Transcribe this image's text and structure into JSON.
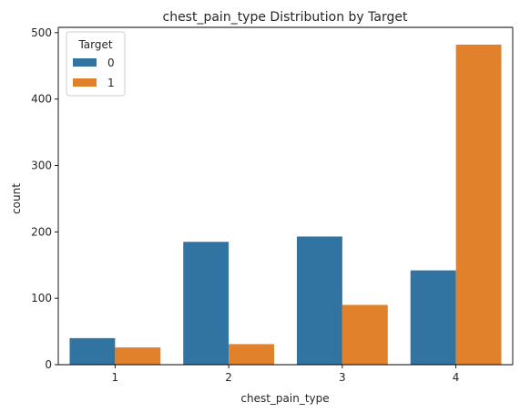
{
  "chart_data": {
    "type": "bar",
    "title": "chest_pain_type Distribution by Target",
    "xlabel": "chest_pain_type",
    "ylabel": "count",
    "categories": [
      "1",
      "2",
      "3",
      "4"
    ],
    "series": [
      {
        "name": "0",
        "values": [
          40,
          185,
          193,
          142
        ],
        "color": "#3274a1"
      },
      {
        "name": "1",
        "values": [
          26,
          31,
          90,
          482
        ],
        "color": "#e1812c"
      }
    ],
    "ylim": [
      0,
      508
    ],
    "yticks": [
      0,
      100,
      200,
      300,
      400,
      500
    ],
    "grid": false,
    "legend": {
      "title": "Target",
      "placement": "top-left"
    }
  }
}
